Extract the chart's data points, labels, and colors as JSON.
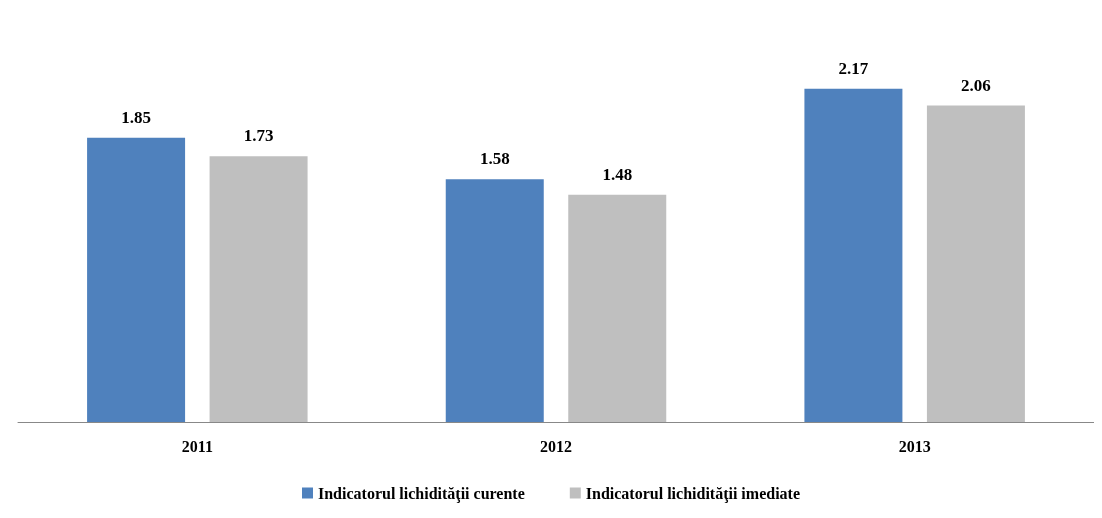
{
  "chart_data": {
    "type": "bar",
    "categories": [
      "2011",
      "2012",
      "2013"
    ],
    "series": [
      {
        "name": "Indicatorul lichidităţii curente",
        "color": "#4f81bd",
        "values": [
          1.85,
          1.58,
          2.17
        ]
      },
      {
        "name": "Indicatorul lichidităţii imediate",
        "color": "#bfbfbf",
        "values": [
          1.73,
          1.48,
          2.06
        ]
      }
    ],
    "data_labels": true,
    "legend": "bottom",
    "grid": false
  }
}
